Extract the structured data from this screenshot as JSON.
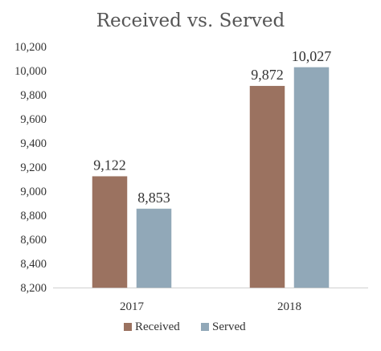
{
  "chart_data": {
    "type": "bar",
    "title": "Received vs. Served",
    "xlabel": "",
    "ylabel": "",
    "categories": [
      "2017",
      "2018"
    ],
    "series": [
      {
        "name": "Received",
        "values": [
          9122,
          9872
        ],
        "labels": [
          "9,122",
          "9,872"
        ],
        "color": "#9b7260"
      },
      {
        "name": "Served",
        "values": [
          8853,
          10027
        ],
        "labels": [
          "8,853",
          "10,027"
        ],
        "color": "#91a8b8"
      }
    ],
    "ylim": [
      8200,
      10200
    ],
    "yticks": [
      8200,
      8400,
      8600,
      8800,
      9000,
      9200,
      9400,
      9600,
      9800,
      10000,
      10200
    ],
    "ytick_labels": [
      "8,200",
      "8,400",
      "8,600",
      "8,800",
      "9,000",
      "9,200",
      "9,400",
      "9,600",
      "9,800",
      "10,000",
      "10,200"
    ],
    "grid": false,
    "legend_position": "bottom"
  }
}
